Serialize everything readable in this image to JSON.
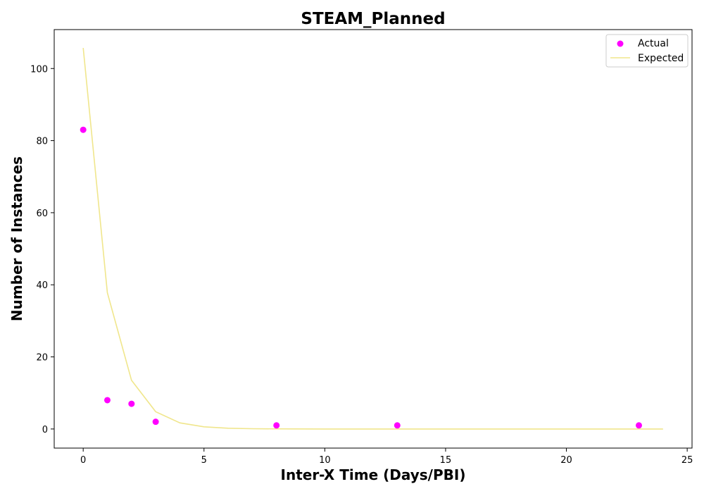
{
  "chart_data": {
    "type": "scatter",
    "title": "STEAM_Planned",
    "xlabel": "Inter-X Time (Days/PBI)",
    "ylabel": "Number of Instances",
    "xlim": [
      -1.2,
      25.2
    ],
    "ylim": [
      -5.3,
      110.8
    ],
    "xticks": [
      0,
      5,
      10,
      15,
      20,
      25
    ],
    "yticks": [
      0,
      20,
      40,
      60,
      80,
      100
    ],
    "grid": false,
    "legend_position": "top-right",
    "series": [
      {
        "name": "Actual",
        "kind": "scatter",
        "color": "#ff00ff",
        "x": [
          0,
          1,
          2,
          3,
          8,
          13,
          23
        ],
        "y": [
          83,
          8,
          7,
          2,
          1,
          1,
          1
        ]
      },
      {
        "name": "Expected",
        "kind": "line",
        "color": "#f0e68c",
        "x": [
          0,
          1,
          2,
          3,
          4,
          5,
          6,
          7,
          8,
          9,
          10,
          11,
          12,
          13,
          14,
          15,
          16,
          17,
          18,
          19,
          20,
          21,
          22,
          23,
          24
        ],
        "y": [
          105.7,
          37.8,
          13.5,
          4.8,
          1.7,
          0.6,
          0.22,
          0.08,
          0.03,
          0.01,
          0,
          0,
          0,
          0,
          0,
          0,
          0,
          0,
          0,
          0,
          0,
          0,
          0,
          0,
          0
        ]
      }
    ]
  }
}
